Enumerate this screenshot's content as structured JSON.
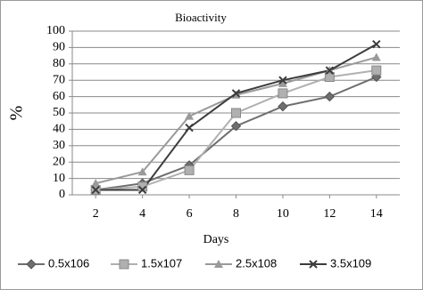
{
  "chart_data": {
    "type": "line",
    "title": "Bioactivity",
    "x_label": "Days",
    "y_label": "%",
    "x": [
      2,
      4,
      6,
      8,
      10,
      12,
      14
    ],
    "xlim": [
      1,
      15
    ],
    "xticks": [
      2,
      4,
      6,
      8,
      10,
      12,
      14
    ],
    "ylim": [
      0,
      100
    ],
    "yticks": [
      0,
      10,
      20,
      30,
      40,
      50,
      60,
      70,
      80,
      90,
      100
    ],
    "grid": true,
    "legend": "bottom",
    "series": [
      {
        "name": "0.5x106",
        "color": "#6e6e6e",
        "marker": "diamond",
        "values": [
          3,
          7,
          18,
          42,
          54,
          60,
          72
        ]
      },
      {
        "name": "1.5x107",
        "color": "#b0b0b0",
        "marker": "square",
        "values": [
          3,
          5,
          15,
          50,
          62,
          72,
          76
        ]
      },
      {
        "name": "2.5x108",
        "color": "#9a9a9a",
        "marker": "triangle",
        "values": [
          7,
          14,
          48,
          61,
          68,
          76,
          84
        ]
      },
      {
        "name": "3.5x109",
        "color": "#3c3c3c",
        "marker": "x",
        "values": [
          3,
          3,
          41,
          62,
          70,
          76,
          92
        ]
      }
    ]
  }
}
